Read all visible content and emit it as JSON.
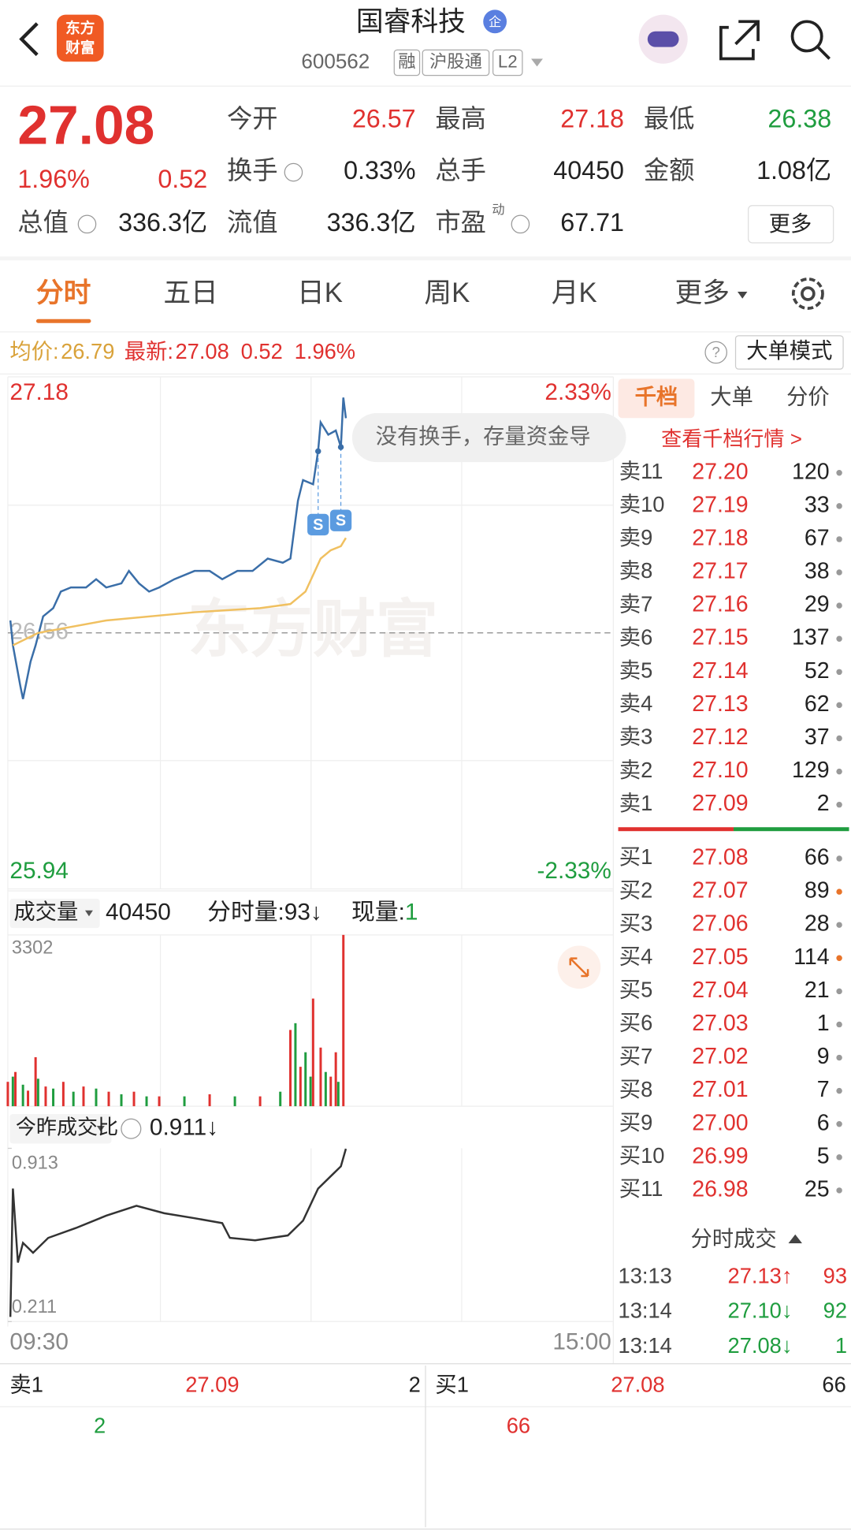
{
  "header": {
    "title": "国睿科技",
    "badge": "企",
    "code": "600562",
    "tags": [
      "融",
      "沪股通",
      "L2"
    ],
    "logo": [
      "东方",
      "财富"
    ]
  },
  "quote": {
    "price": "27.08",
    "change_pct": "1.96%",
    "change": "0.52",
    "color": "#e0312f",
    "more": "更多",
    "fields": [
      {
        "label": "今开",
        "value": "26.57",
        "color": "#e0312f"
      },
      {
        "label": "最高",
        "value": "27.18",
        "color": "#e0312f"
      },
      {
        "label": "最低",
        "value": "26.38",
        "color": "#1f9d3f"
      },
      {
        "label": "换手",
        "value": "0.33%",
        "color": "#222222"
      },
      {
        "label": "总手",
        "value": "40450",
        "color": "#222222"
      },
      {
        "label": "金额",
        "value": "1.08亿",
        "color": "#222222"
      },
      {
        "label": "总值",
        "value": "336.3亿",
        "color": "#222222"
      },
      {
        "label": "流值",
        "value": "336.3亿",
        "color": "#222222"
      },
      {
        "label": "市盈",
        "sup": "动",
        "value": "67.71",
        "color": "#222222"
      }
    ]
  },
  "tabs": {
    "items": [
      "分时",
      "五日",
      "日K",
      "周K",
      "月K",
      "更多"
    ],
    "active": 0,
    "active_color": "#e8742a"
  },
  "info_bar": {
    "avg_label": "均价:",
    "avg": "26.79",
    "latest_label": "最新:",
    "latest": "27.08",
    "change": "0.52",
    "pct": "1.96%",
    "mode": "大单模式"
  },
  "price_chart": {
    "type": "line",
    "watermark": "东方财富",
    "tooltip": "没有换手，存量资金导",
    "xlim": [
      0,
      240
    ],
    "xticks": [
      {
        "value": 0,
        "label": "09:30"
      },
      {
        "value": 240,
        "label": "15:00"
      }
    ],
    "ylim": [
      25.94,
      27.18
    ],
    "yticks": [
      27.18,
      26.56,
      25.94
    ],
    "y2lim": [
      -2.33,
      2.33
    ],
    "y2ticks": [
      {
        "value": 2.33,
        "label": "2.33%"
      },
      {
        "value": -2.33,
        "label": "-2.33%"
      }
    ],
    "series": [
      {
        "color": "#3a6ea8",
        "x": [
          1,
          2,
          5,
          6,
          9,
          11,
          14,
          18,
          21,
          25,
          31,
          35,
          39,
          45,
          48,
          52,
          56,
          60,
          66,
          74,
          80,
          85,
          91,
          97,
          103,
          109,
          112,
          115,
          117,
          121,
          123,
          124,
          127,
          130,
          132,
          133,
          134
        ],
        "values": [
          26.59,
          26.53,
          26.43,
          26.4,
          26.49,
          26.53,
          26.6,
          26.62,
          26.66,
          26.67,
          26.67,
          26.69,
          26.67,
          26.68,
          26.71,
          26.68,
          26.66,
          26.67,
          26.69,
          26.71,
          26.71,
          26.69,
          26.71,
          26.71,
          26.74,
          26.73,
          26.74,
          26.88,
          26.93,
          26.92,
          27.0,
          27.07,
          27.04,
          27.05,
          27.01,
          27.13,
          27.08
        ]
      },
      {
        "color": "#f0c060",
        "x": [
          2,
          12,
          39,
          74,
          100,
          112,
          118,
          124,
          128,
          132,
          134
        ],
        "values": [
          26.53,
          26.56,
          26.59,
          26.61,
          26.62,
          26.63,
          26.66,
          26.74,
          26.76,
          26.77,
          26.79
        ]
      }
    ],
    "markers": [
      {
        "label": "S",
        "x": 123
      },
      {
        "label": "S",
        "x": 132
      }
    ]
  },
  "volume_chart": {
    "type": "bar",
    "selector": "成交量",
    "total": "40450",
    "minute_label": "分时量:",
    "minute": "93↓",
    "current_label": "现量:",
    "current": "1",
    "xlim": [
      0,
      240
    ],
    "ylim": [
      0,
      3302
    ],
    "yticks": [
      3302
    ],
    "series": [
      {
        "color": "#e0312f",
        "x": [
          0,
          3,
          8,
          11,
          15,
          22,
          30,
          40,
          50,
          60,
          80,
          100,
          112,
          116,
          121,
          124,
          128,
          130,
          133
        ],
        "values": [
          470,
          660,
          300,
          945,
          380,
          470,
          380,
          280,
          280,
          190,
          230,
          190,
          1470,
          760,
          2075,
          1130,
          570,
          1040,
          3302
        ]
      },
      {
        "color": "#1f9d3f",
        "x": [
          2,
          6,
          12,
          18,
          26,
          35,
          45,
          55,
          70,
          90,
          108,
          114,
          118,
          120,
          126,
          131
        ],
        "values": [
          570,
          415,
          530,
          340,
          280,
          340,
          230,
          190,
          190,
          190,
          280,
          1600,
          1040,
          570,
          660,
          470
        ]
      }
    ]
  },
  "ratio_chart": {
    "type": "line",
    "selector": "今昨成交比",
    "value": "0.911↓",
    "xlim": [
      0,
      240
    ],
    "ylim": [
      0.211,
      0.913
    ],
    "yticks": [
      0.913,
      0.211
    ],
    "series": [
      {
        "color": "#333333",
        "x": [
          1,
          2,
          4,
          6,
          10,
          16,
          27,
          39,
          51,
          62,
          74,
          85,
          88,
          98,
          111,
          117,
          123,
          129,
          132,
          134
        ],
        "values": [
          0.23,
          0.75,
          0.45,
          0.53,
          0.49,
          0.55,
          0.59,
          0.64,
          0.68,
          0.65,
          0.63,
          0.61,
          0.55,
          0.54,
          0.56,
          0.62,
          0.75,
          0.81,
          0.84,
          0.911
        ]
      }
    ]
  },
  "order_book": {
    "tabs": [
      "千档",
      "大单",
      "分价"
    ],
    "link": "查看千档行情 >",
    "asks": [
      {
        "label": "卖11",
        "price": "27.20",
        "qty": 120,
        "dot": "#999999"
      },
      {
        "label": "卖10",
        "price": "27.19",
        "qty": 33,
        "dot": "#999999"
      },
      {
        "label": "卖9",
        "price": "27.18",
        "qty": 67,
        "dot": "#999999"
      },
      {
        "label": "卖8",
        "price": "27.17",
        "qty": 38,
        "dot": "#999999"
      },
      {
        "label": "卖7",
        "price": "27.16",
        "qty": 29,
        "dot": "#999999"
      },
      {
        "label": "卖6",
        "price": "27.15",
        "qty": 137,
        "dot": "#999999"
      },
      {
        "label": "卖5",
        "price": "27.14",
        "qty": 52,
        "dot": "#999999"
      },
      {
        "label": "卖4",
        "price": "27.13",
        "qty": 62,
        "dot": "#999999"
      },
      {
        "label": "卖3",
        "price": "27.12",
        "qty": 37,
        "dot": "#999999"
      },
      {
        "label": "卖2",
        "price": "27.10",
        "qty": 129,
        "dot": "#999999"
      },
      {
        "label": "卖1",
        "price": "27.09",
        "qty": 2,
        "dot": "#999999"
      }
    ],
    "bids": [
      {
        "label": "买1",
        "price": "27.08",
        "qty": 66,
        "dot": "#999999"
      },
      {
        "label": "买2",
        "price": "27.07",
        "qty": 89,
        "dot": "#e8742a"
      },
      {
        "label": "买3",
        "price": "27.06",
        "qty": 28,
        "dot": "#999999"
      },
      {
        "label": "买4",
        "price": "27.05",
        "qty": 114,
        "dot": "#e8742a"
      },
      {
        "label": "买5",
        "price": "27.04",
        "qty": 21,
        "dot": "#999999"
      },
      {
        "label": "买6",
        "price": "27.03",
        "qty": 1,
        "dot": "#999999"
      },
      {
        "label": "买7",
        "price": "27.02",
        "qty": 9,
        "dot": "#999999"
      },
      {
        "label": "买8",
        "price": "27.01",
        "qty": 7,
        "dot": "#999999"
      },
      {
        "label": "买9",
        "price": "27.00",
        "qty": 6,
        "dot": "#999999"
      },
      {
        "label": "买10",
        "price": "26.99",
        "qty": 5,
        "dot": "#999999"
      },
      {
        "label": "买11",
        "price": "26.98",
        "qty": 25,
        "dot": "#999999"
      }
    ]
  },
  "trades": {
    "title": "分时成交",
    "rows": [
      {
        "time": "13:13",
        "price": "27.13↑",
        "qty": "93",
        "color": "#e0312f"
      },
      {
        "time": "13:14",
        "price": "27.10↓",
        "qty": "92",
        "color": "#1f9d3f"
      },
      {
        "time": "13:14",
        "price": "27.08↓",
        "qty": "1",
        "color": "#1f9d3f"
      }
    ]
  },
  "bottom": {
    "sell": {
      "label": "卖1",
      "price": "27.09",
      "qty": "2",
      "detail": "2"
    },
    "buy": {
      "label": "买1",
      "price": "27.08",
      "qty": "66",
      "detail": "66"
    }
  }
}
